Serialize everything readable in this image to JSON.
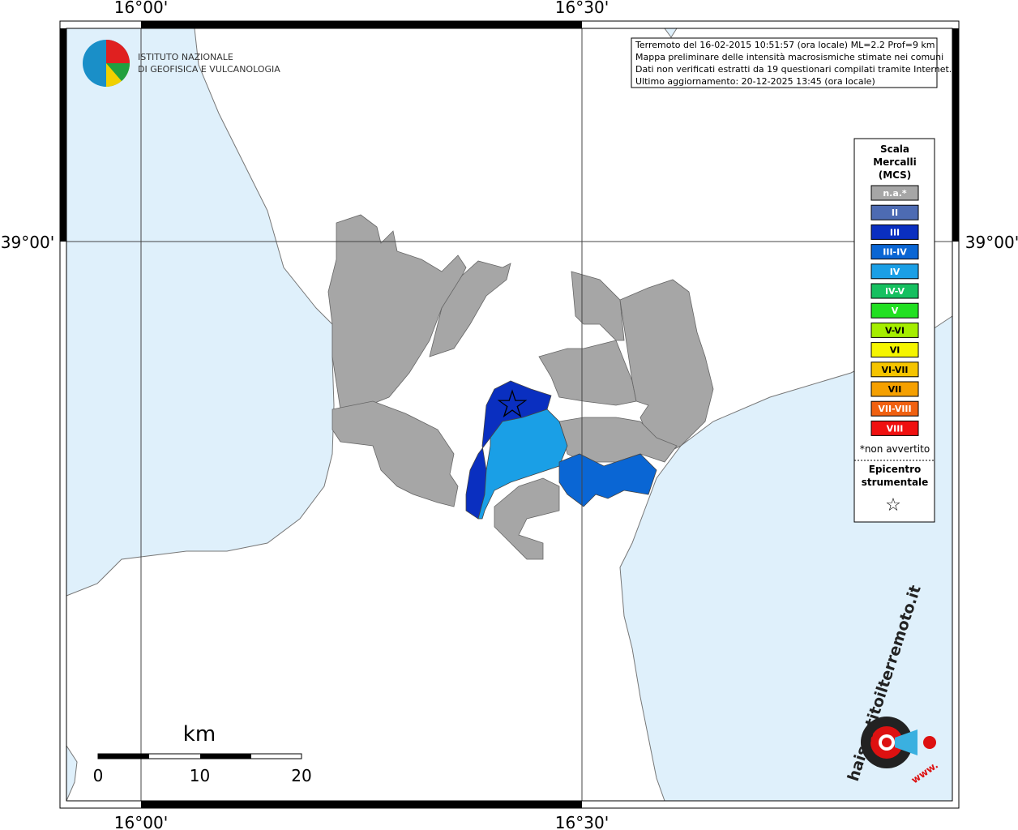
{
  "map": {
    "lon_labels": [
      "16°00'",
      "16°30'"
    ],
    "lat_label": "39°00'",
    "logo": {
      "line1": "ISTITUTO NAZIONALE",
      "line2": "DI GEOFISICA E VULCANOLOGIA"
    },
    "info": [
      "Terremoto del 16-02-2015 10:51:57 (ora locale) ML=2.2 Prof=9 km",
      "Mappa preliminare delle intensità macrosismiche stimate nei comuni",
      "Dati non verificati estratti da 19 questionari compilati tramite Internet.",
      "Ultimo aggiornamento: 20-12-2025 13:45 (ora locale)"
    ],
    "legend": {
      "title": [
        "Scala",
        "Mercalli",
        "(MCS)"
      ],
      "items": [
        {
          "label": "n.a.*",
          "color": "#a6a6a6"
        },
        {
          "label": "II",
          "color": "#4d6bb3"
        },
        {
          "label": "III",
          "color": "#0a2fc0"
        },
        {
          "label": "III-IV",
          "color": "#0a66d4"
        },
        {
          "label": "IV",
          "color": "#1a9fe6"
        },
        {
          "label": "IV-V",
          "color": "#16c060"
        },
        {
          "label": "V",
          "color": "#22e022"
        },
        {
          "label": "V-VI",
          "color": "#a5ee00"
        },
        {
          "label": "VI",
          "color": "#f5f500"
        },
        {
          "label": "VI-VII",
          "color": "#f5c400"
        },
        {
          "label": "VII",
          "color": "#f5a000"
        },
        {
          "label": "VII-VIII",
          "color": "#f06010"
        },
        {
          "label": "VIII",
          "color": "#f01010"
        }
      ],
      "note": "*non avvertito",
      "epicenter": [
        "Epicentro",
        "strumentale"
      ],
      "star": "☆"
    },
    "scale": {
      "unit": "km",
      "ticks": [
        0,
        10,
        20
      ]
    },
    "site": {
      "name": "haisentitoilterremoto.it",
      "prefix": "www."
    }
  }
}
